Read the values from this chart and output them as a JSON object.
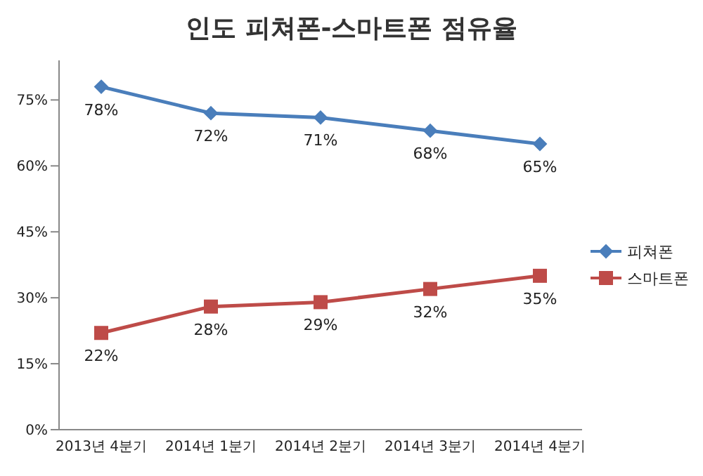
{
  "chart_data": {
    "type": "line",
    "title": "인도 피쳐폰-스마트폰 점유율",
    "categories": [
      "2013년 4분기",
      "2014년 1분기",
      "2014년 2분기",
      "2014년 3분기",
      "2014년 4분기"
    ],
    "series": [
      {
        "name": "피쳐폰",
        "color": "#4a7ebb",
        "marker": "diamond",
        "values": [
          78,
          72,
          71,
          68,
          65
        ],
        "value_labels": [
          "78%",
          "72%",
          "71%",
          "68%",
          "65%"
        ]
      },
      {
        "name": "스마트폰",
        "color": "#be4b48",
        "marker": "square",
        "values": [
          22,
          28,
          29,
          32,
          35
        ],
        "value_labels": [
          "22%",
          "28%",
          "29%",
          "32%",
          "35%"
        ]
      }
    ],
    "ylim": [
      0,
      84
    ],
    "yticks": [
      {
        "value": 0,
        "label": "0%"
      },
      {
        "value": 15,
        "label": "15%"
      },
      {
        "value": 30,
        "label": "30%"
      },
      {
        "value": 45,
        "label": "45%"
      },
      {
        "value": 60,
        "label": "60%"
      },
      {
        "value": 75,
        "label": "75%"
      }
    ],
    "grid": false,
    "legend": "right",
    "line_style": "solid"
  }
}
